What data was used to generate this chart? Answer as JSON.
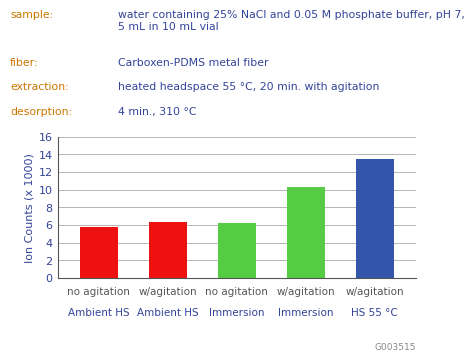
{
  "bars": [
    {
      "line1": "no agitation",
      "line2": "Ambient HS",
      "value": 5.8,
      "color": "#ee1111"
    },
    {
      "line1": "w/agitation",
      "line2": "Ambient HS",
      "value": 6.3,
      "color": "#ee1111"
    },
    {
      "line1": "no agitation",
      "line2": "Immersion",
      "value": 6.2,
      "color": "#55cc44"
    },
    {
      "line1": "w/agitation",
      "line2": "Immersion",
      "value": 10.3,
      "color": "#55cc44"
    },
    {
      "line1": "w/agitation",
      "line2": "HS 55 °C",
      "value": 13.5,
      "color": "#3355aa"
    }
  ],
  "ylabel": "Ion Counts (x 1000)",
  "ylim": [
    0,
    16
  ],
  "yticks": [
    0,
    2,
    4,
    6,
    8,
    10,
    12,
    14,
    16
  ],
  "annotation": "G003515",
  "header_lines": [
    [
      "sample:",
      "water containing 25% NaCl and 0.05 M phosphate buffer, pH 7,\n5 mL in 10 mL vial"
    ],
    [
      "fiber:",
      "Carboxen-PDMS metal fiber"
    ],
    [
      "extraction:",
      "heated headspace 55 °C, 20 min. with agitation"
    ],
    [
      "desorption:",
      "4 min., 310 °C"
    ]
  ],
  "header_label_color": "#cc7700",
  "header_value_color": "#334499",
  "tick_label_color1": "#555555",
  "tick_label_color2": "#334499",
  "ylabel_color": "#334499",
  "ytick_color": "#334499",
  "background_color": "#ffffff",
  "grid_color": "#aaaaaa",
  "bar_width": 0.55,
  "header_fontsize": 7.8,
  "bar_label_fontsize": 7.5
}
